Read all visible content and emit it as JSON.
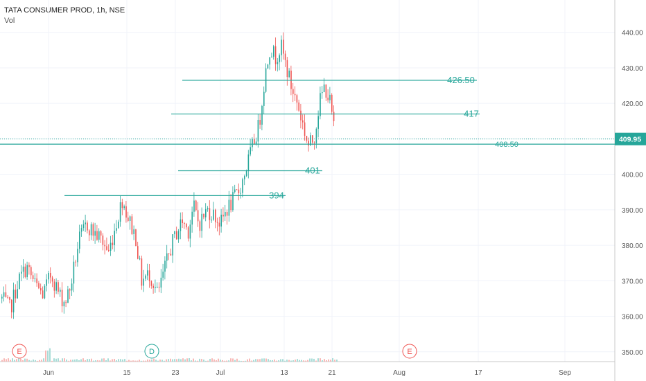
{
  "header": {
    "symbol_line": "TATA CONSUMER PROD, 1h, NSE",
    "volume_label": "Vol"
  },
  "colors": {
    "up": "#26a69a",
    "down": "#ef5350",
    "level_line": "#26a69a",
    "axis_text": "#555555",
    "price_badge": "#26a69a"
  },
  "chart_data": {
    "type": "candlestick",
    "y_axis": {
      "ticks": [
        350,
        360,
        370,
        380,
        390,
        400,
        410,
        420,
        430,
        440
      ],
      "labels": [
        "350.00",
        "360.00",
        "370.00",
        "380.00",
        "390.00",
        "400.00",
        "410.00",
        "420.00",
        "430.00",
        "440.00"
      ],
      "range": [
        348,
        446
      ],
      "position": "right"
    },
    "x_axis": {
      "labels": [
        "Jun",
        "15",
        "D",
        "23",
        "Jul",
        "13",
        "21",
        "Aug",
        "17",
        "Sep"
      ],
      "label_list": [
        "Jun",
        "15",
        "23",
        "Jul",
        "13",
        "21",
        "Aug",
        "17",
        "Sep"
      ]
    },
    "current_price": {
      "value": 409.95,
      "label": "409.95"
    },
    "levels": [
      {
        "value": 426.5,
        "label": "426.50"
      },
      {
        "value": 417,
        "label": "417"
      },
      {
        "value": 408.5,
        "label": "408.50"
      },
      {
        "value": 401,
        "label": "401"
      },
      {
        "value": 394,
        "label": "394"
      }
    ],
    "events": [
      {
        "label": "E",
        "type": "earnings"
      },
      {
        "label": "D",
        "type": "dividend"
      },
      {
        "label": "E",
        "type": "earnings"
      }
    ],
    "price_path": [
      [
        0,
        365
      ],
      [
        3,
        362
      ],
      [
        6,
        370
      ],
      [
        9,
        374
      ],
      [
        12,
        369
      ],
      [
        15,
        366
      ],
      [
        18,
        372
      ],
      [
        21,
        366
      ],
      [
        23,
        364
      ],
      [
        25,
        368
      ],
      [
        28,
        381
      ],
      [
        31,
        386
      ],
      [
        33,
        384
      ],
      [
        36,
        382
      ],
      [
        39,
        378
      ],
      [
        41,
        384
      ],
      [
        44,
        393
      ],
      [
        46,
        388
      ],
      [
        49,
        382
      ],
      [
        51,
        370
      ],
      [
        54,
        372
      ],
      [
        57,
        366
      ],
      [
        59,
        372
      ],
      [
        62,
        380
      ],
      [
        64,
        384
      ],
      [
        66,
        387
      ],
      [
        68,
        384
      ],
      [
        70,
        391
      ],
      [
        72,
        386
      ],
      [
        75,
        390
      ],
      [
        77,
        389
      ],
      [
        80,
        386
      ],
      [
        82,
        390
      ],
      [
        84,
        392
      ],
      [
        87,
        396
      ],
      [
        89,
        401
      ],
      [
        92,
        409
      ],
      [
        94,
        414
      ],
      [
        96,
        427
      ],
      [
        98,
        436
      ],
      [
        100,
        433
      ],
      [
        102,
        436
      ],
      [
        104,
        430
      ],
      [
        106,
        424
      ],
      [
        108,
        420
      ],
      [
        110,
        414
      ],
      [
        112,
        408
      ],
      [
        114,
        410
      ],
      [
        116,
        420
      ],
      [
        118,
        425
      ],
      [
        120,
        420
      ],
      [
        122,
        409
      ]
    ]
  }
}
